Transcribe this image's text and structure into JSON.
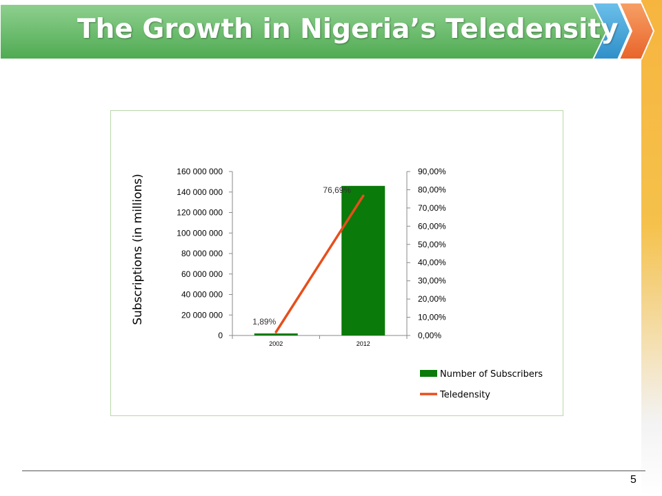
{
  "slide": {
    "title": "The Growth in Nigeria’s Teledensity",
    "page_number": "5",
    "colors": {
      "title_banner": "#6cbd6e",
      "chevron_blue": "#3fa3d8",
      "chevron_orange": "#f07a36",
      "side_strip": "#f6b53f"
    }
  },
  "chart_data": {
    "type": "bar",
    "categories": [
      "2002",
      "2012"
    ],
    "ylabel": "Subscriptions (in millions)",
    "ylim": [
      0,
      160000000
    ],
    "y_ticks": [
      "0",
      "20 000 000",
      "40 000 000",
      "60 000 000",
      "80 000 000",
      "100 000 000",
      "120 000 000",
      "140 000 000",
      "160 000 000"
    ],
    "y2lim": [
      0,
      90
    ],
    "y2_ticks": [
      "0,00%",
      "10,00%",
      "20,00%",
      "30,00%",
      "40,00%",
      "50,00%",
      "60,00%",
      "70,00%",
      "80,00%",
      "90,00%"
    ],
    "series": [
      {
        "name": "Number of Subscribers",
        "type": "bar",
        "axis": "left",
        "values": [
          2000000,
          146000000
        ],
        "color": "#0a7a0a"
      },
      {
        "name": "Teledensity",
        "type": "line",
        "axis": "right",
        "values": [
          1.89,
          76.69
        ],
        "labels": [
          "1,89%",
          "76,69%"
        ],
        "color": "#e84e1b"
      }
    ],
    "legend": "right-bottom",
    "grid": false
  }
}
